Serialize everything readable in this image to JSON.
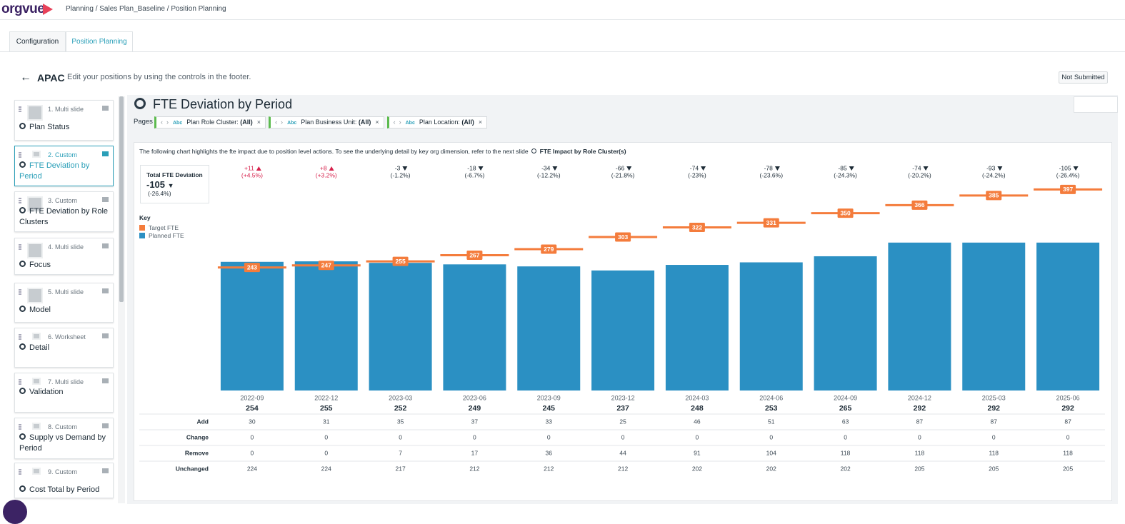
{
  "header": {
    "logo": "orgvue",
    "breadcrumb": "Planning / Sales Plan_Baseline / Position Planning"
  },
  "tabs": [
    "Configuration",
    "Position Planning"
  ],
  "page": {
    "title": "APAC",
    "subtitle": "Edit your positions by using the controls in the footer.",
    "status": "Not Submitted"
  },
  "sidebar": [
    {
      "label": "1. Multi slide",
      "title": "Plan Status"
    },
    {
      "label": "2. Custom",
      "title": "FTE Deviation by Period"
    },
    {
      "label": "3. Custom",
      "title": "FTE Deviation by Role Clusters"
    },
    {
      "label": "4. Multi slide",
      "title": "Focus"
    },
    {
      "label": "5. Multi slide",
      "title": "Model"
    },
    {
      "label": "6. Worksheet",
      "title": "Detail"
    },
    {
      "label": "7. Multi slide",
      "title": "Validation"
    },
    {
      "label": "8. Custom",
      "title": "Supply vs Demand by Period"
    },
    {
      "label": "9. Custom",
      "title": "Cost Total by Period"
    }
  ],
  "slide": {
    "title": "FTE Deviation by Period",
    "pages_label": "Pages",
    "filters": [
      {
        "name": "Plan Role Cluster:",
        "value": "(All)"
      },
      {
        "name": "Plan Business Unit:",
        "value": "(All)"
      },
      {
        "name": "Plan Location:",
        "value": "(All)"
      }
    ],
    "description": "The following chart highlights the fte impact due to position level actions. To see the underlying detail by key org dimension, refer to the next slide",
    "link": "FTE Impact by Role Cluster(s)",
    "total": {
      "label": "Total FTE Deviation",
      "value": -105,
      "pct": "(-26.4%)"
    },
    "key_label": "Key"
  },
  "chart_data": {
    "type": "bar",
    "categories": [
      "2022-09",
      "2022-12",
      "2023-03",
      "2023-06",
      "2023-09",
      "2023-12",
      "2024-03",
      "2024-06",
      "2024-09",
      "2024-12",
      "2025-03",
      "2025-06"
    ],
    "series": [
      {
        "name": "Target FTE",
        "color": "#f47c3c",
        "values": [
          243,
          247,
          255,
          267,
          279,
          303,
          322,
          331,
          350,
          366,
          385,
          397
        ]
      },
      {
        "name": "Planned FTE",
        "color": "#2b90c3",
        "values": [
          254,
          255,
          252,
          249,
          245,
          237,
          248,
          253,
          265,
          292,
          292,
          292
        ]
      }
    ],
    "deviation": {
      "values": [
        11,
        8,
        -3,
        -18,
        -34,
        -66,
        -74,
        -78,
        -85,
        -74,
        -93,
        -105
      ],
      "value_labels": [
        "+11",
        "+8",
        "-3",
        "-18",
        "-34",
        "-66",
        "-74",
        "-78",
        "-85",
        "-74",
        "-93",
        "-105"
      ]
    },
    "deviation_pct": {
      "values": [
        4.5,
        3.2,
        -1.2,
        -6.7,
        -12.2,
        -21.8,
        -23,
        -23.6,
        -24.3,
        -20.2,
        -24.2,
        -26.4
      ],
      "value_labels": [
        "(+4.5%)",
        "(+3.2%)",
        "(-1.2%)",
        "(-6.7%)",
        "(-12.2%)",
        "(-21.8%)",
        "(-23%)",
        "(-23.6%)",
        "(-24.3%)",
        "(-20.2%)",
        "(-24.2%)",
        "(-26.4%)"
      ]
    },
    "ylim": [
      0,
      420
    ]
  },
  "table": {
    "rows": [
      {
        "name": "Add",
        "values": [
          30,
          31,
          35,
          37,
          33,
          25,
          46,
          51,
          63,
          87,
          87,
          87
        ]
      },
      {
        "name": "Change",
        "values": [
          0,
          0,
          0,
          0,
          0,
          0,
          0,
          0,
          0,
          0,
          0,
          0
        ]
      },
      {
        "name": "Remove",
        "values": [
          0,
          0,
          7,
          17,
          36,
          44,
          91,
          104,
          118,
          118,
          118,
          118
        ]
      },
      {
        "name": "Unchanged",
        "values": [
          224,
          224,
          217,
          212,
          212,
          212,
          202,
          202,
          202,
          205,
          205,
          205
        ]
      }
    ]
  }
}
